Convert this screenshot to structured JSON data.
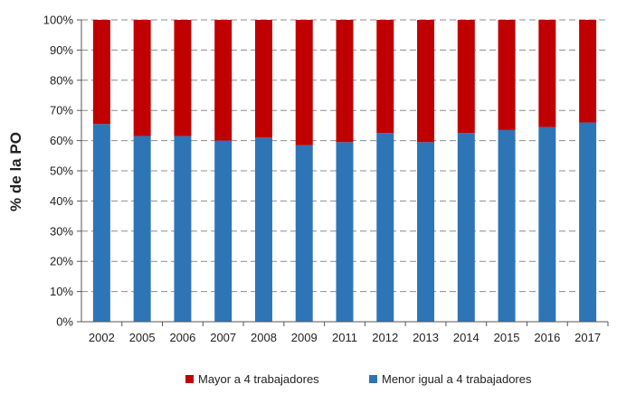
{
  "chart_data": {
    "type": "bar",
    "stacked": true,
    "percent_stacked": true,
    "categories": [
      "2002",
      "2005",
      "2006",
      "2007",
      "2008",
      "2009",
      "2011",
      "2012",
      "2013",
      "2014",
      "2015",
      "2016",
      "2017"
    ],
    "series": [
      {
        "name": "Menor igual a 4 trabajadores",
        "color": "#2e75b6",
        "values": [
          65.5,
          61.5,
          61.5,
          60,
          61,
          58.5,
          59.5,
          62.5,
          59.5,
          62.5,
          63.5,
          64.5,
          66
        ]
      },
      {
        "name": "Mayor a 4 trabajadores",
        "color": "#c00000",
        "values": [
          34.5,
          38.5,
          38.5,
          40,
          39,
          41.5,
          40.5,
          37.5,
          40.5,
          37.5,
          36.5,
          35.5,
          34
        ]
      }
    ],
    "legend_order": [
      1,
      0
    ],
    "title": "",
    "xlabel": "",
    "ylabel": "% de la PO",
    "ylim": [
      0,
      100
    ],
    "yticks": [
      "0%",
      "10%",
      "20%",
      "30%",
      "40%",
      "50%",
      "60%",
      "70%",
      "80%",
      "90%",
      "100%"
    ],
    "grid": true,
    "grid_style": "dashed",
    "legend_position": "bottom"
  }
}
